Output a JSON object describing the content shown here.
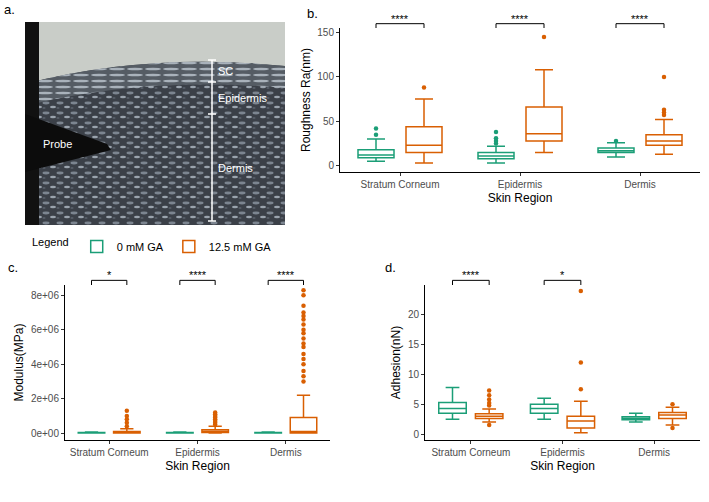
{
  "image_panel": {
    "letter": "a.",
    "probe": "Probe",
    "layers": [
      "SC",
      "Epidermis",
      "Dermis"
    ]
  },
  "chart_data": [
    {
      "type": "box",
      "letter": "b.",
      "x_label": "Skin Region",
      "y_label": "Roughness Ra(nm)",
      "categories": [
        "Stratum Corneum",
        "Epidermis",
        "Dermis"
      ],
      "ylim": [
        -7,
        155
      ],
      "yticks": [
        0,
        50,
        100,
        150
      ],
      "grid": false,
      "legend": "below left",
      "legend_title": "Legend",
      "series": [
        {
          "name": "0 mM GA",
          "color": "#1b9e77",
          "lowerfence": [
            5,
            3,
            10
          ],
          "q1": [
            9,
            8,
            15
          ],
          "median": [
            12,
            11,
            17
          ],
          "q3": [
            18,
            15,
            20
          ],
          "upperfence": [
            30,
            22,
            26
          ],
          "outliers": [
            [
              35,
              42
            ],
            [
              25,
              28,
              31,
              38
            ],
            [
              28
            ]
          ]
        },
        {
          "name": "12.5 mM GA",
          "color": "#d95f02",
          "lowerfence": [
            3,
            15,
            13
          ],
          "q1": [
            15,
            28,
            23
          ],
          "median": [
            23,
            36,
            28
          ],
          "q3": [
            44,
            66,
            35
          ],
          "upperfence": [
            75,
            108,
            52
          ],
          "outliers": [
            [
              88
            ],
            [
              145
            ],
            [
              57,
              60,
              63,
              100
            ]
          ]
        }
      ],
      "significance": [
        {
          "category": "Stratum Corneum",
          "label": "****"
        },
        {
          "category": "Epidermis",
          "label": "****"
        },
        {
          "category": "Dermis",
          "label": "****"
        }
      ]
    },
    {
      "type": "box",
      "letter": "c.",
      "x_label": "Skin Region",
      "y_label": "Modulus(MPa)",
      "categories": [
        "Stratum Corneum",
        "Epidermis",
        "Dermis"
      ],
      "ylim": [
        -400000,
        8600000
      ],
      "yticks": [
        {
          "value": 0,
          "label": "0e+00"
        },
        {
          "value": 2000000,
          "label": "2e+06"
        },
        {
          "value": 4000000,
          "label": "4e+06"
        },
        {
          "value": 6000000,
          "label": "6e+06"
        },
        {
          "value": 8000000,
          "label": "8e+06"
        }
      ],
      "grid": false,
      "series": [
        {
          "name": "0 mM GA",
          "color": "#1b9e77",
          "lowerfence": [
            0,
            0,
            0
          ],
          "q1": [
            5000,
            5000,
            5000
          ],
          "median": [
            15000,
            15000,
            15000
          ],
          "q3": [
            30000,
            30000,
            30000
          ],
          "upperfence": [
            60000,
            60000,
            60000
          ],
          "outliers": [
            [],
            [],
            []
          ]
        },
        {
          "name": "12.5 mM GA",
          "color": "#d95f02",
          "lowerfence": [
            0,
            0,
            0
          ],
          "q1": [
            0,
            30000,
            0
          ],
          "median": [
            30000,
            100000,
            100000
          ],
          "q3": [
            100000,
            200000,
            900000
          ],
          "upperfence": [
            250000,
            400000,
            2200000
          ],
          "outliers": [
            [
              400000,
              600000,
              800000,
              1000000,
              1300000
            ],
            [
              500000,
              600000,
              700000,
              800000,
              900000,
              1000000,
              1100000,
              1200000
            ],
            [
              3000000,
              3300000,
              3600000,
              4000000,
              4300000,
              4600000,
              5000000,
              5200000,
              5500000,
              5800000,
              6000000,
              6300000,
              6600000,
              6800000,
              7000000,
              7400000,
              8000000,
              8300000
            ]
          ]
        }
      ],
      "significance": [
        {
          "category": "Stratum Corneum",
          "label": "*"
        },
        {
          "category": "Epidermis",
          "label": "****"
        },
        {
          "category": "Dermis",
          "label": "****"
        }
      ]
    },
    {
      "type": "box",
      "letter": "d.",
      "x_label": "Skin Region",
      "y_label": "Adhesion(nN)",
      "categories": [
        "Stratum Corneum",
        "Epidermis",
        "Dermis"
      ],
      "ylim": [
        -1,
        25
      ],
      "yticks": [
        0,
        5,
        10,
        15,
        20
      ],
      "grid": false,
      "series": [
        {
          "name": "0 mM GA",
          "color": "#1b9e77",
          "lowerfence": [
            2.5,
            2.5,
            2
          ],
          "q1": [
            3.5,
            3.5,
            2.4
          ],
          "median": [
            4.3,
            4.3,
            2.6
          ],
          "q3": [
            5.3,
            5,
            2.9
          ],
          "upperfence": [
            7.8,
            6,
            3.5
          ],
          "outliers": [
            [],
            [],
            []
          ]
        },
        {
          "name": "12.5 mM GA",
          "color": "#d95f02",
          "lowerfence": [
            2,
            0.2,
            1.5
          ],
          "q1": [
            2.6,
            1,
            2.6
          ],
          "median": [
            3,
            2.2,
            3.2
          ],
          "q3": [
            3.4,
            3,
            3.6
          ],
          "upperfence": [
            4.2,
            5.5,
            4.5
          ],
          "outliers": [
            [
              1.5,
              4.8,
              5.2,
              5.8,
              6.5,
              7.3
            ],
            [
              7.5,
              12,
              24
            ],
            [
              1,
              5
            ]
          ]
        }
      ],
      "significance": [
        {
          "category": "Stratum Corneum",
          "label": "****"
        },
        {
          "category": "Epidermis",
          "label": "*"
        }
      ]
    }
  ]
}
